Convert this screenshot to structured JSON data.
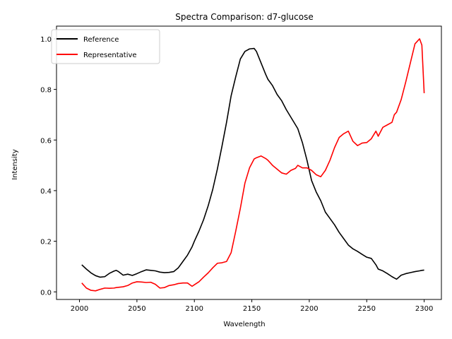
{
  "chart_data": {
    "type": "line",
    "title": "Spectra Comparison: d7-glucose",
    "xlabel": "Wavelength",
    "ylabel": "Intensity",
    "xlim": [
      1980,
      2315
    ],
    "ylim": [
      -0.03,
      1.05
    ],
    "xticks": [
      2000,
      2050,
      2100,
      2150,
      2200,
      2250,
      2300
    ],
    "yticks": [
      0.0,
      0.2,
      0.4,
      0.6,
      0.8,
      1.0
    ],
    "grid": false,
    "legend_position": "top-left",
    "x": [
      2002,
      2006,
      2010,
      2014,
      2018,
      2022,
      2026,
      2030,
      2032,
      2034,
      2038,
      2042,
      2046,
      2050,
      2054,
      2058,
      2062,
      2066,
      2070,
      2074,
      2078,
      2082,
      2086,
      2090,
      2094,
      2098,
      2100,
      2104,
      2108,
      2112,
      2116,
      2120,
      2124,
      2128,
      2132,
      2136,
      2140,
      2144,
      2148,
      2152,
      2154,
      2158,
      2162,
      2164,
      2168,
      2172,
      2176,
      2180,
      2184,
      2188,
      2190,
      2194,
      2198,
      2202,
      2206,
      2210,
      2214,
      2218,
      2222,
      2226,
      2230,
      2234,
      2238,
      2242,
      2246,
      2250,
      2254,
      2258,
      2260,
      2264,
      2268,
      2272,
      2274,
      2276,
      2280,
      2284,
      2288,
      2292,
      2296,
      2298,
      2300
    ],
    "series": [
      {
        "name": "Reference",
        "color": "#000000",
        "values": [
          0.107,
          0.09,
          0.075,
          0.064,
          0.058,
          0.06,
          0.073,
          0.082,
          0.085,
          0.08,
          0.066,
          0.07,
          0.065,
          0.072,
          0.08,
          0.087,
          0.085,
          0.083,
          0.078,
          0.076,
          0.077,
          0.08,
          0.095,
          0.12,
          0.145,
          0.178,
          0.2,
          0.24,
          0.285,
          0.34,
          0.405,
          0.485,
          0.575,
          0.67,
          0.775,
          0.85,
          0.92,
          0.95,
          0.96,
          0.962,
          0.95,
          0.905,
          0.86,
          0.84,
          0.815,
          0.78,
          0.755,
          0.72,
          0.69,
          0.66,
          0.645,
          0.59,
          0.52,
          0.44,
          0.395,
          0.36,
          0.315,
          0.29,
          0.265,
          0.235,
          0.21,
          0.185,
          0.17,
          0.16,
          0.148,
          0.137,
          0.132,
          0.107,
          0.09,
          0.083,
          0.072,
          0.06,
          0.055,
          0.05,
          0.066,
          0.072,
          0.076,
          0.08,
          0.083,
          0.085,
          0.086
        ]
      },
      {
        "name": "Representative",
        "color": "#ff0000",
        "values": [
          0.035,
          0.015,
          0.006,
          0.004,
          0.01,
          0.015,
          0.014,
          0.015,
          0.017,
          0.018,
          0.02,
          0.025,
          0.035,
          0.04,
          0.039,
          0.037,
          0.038,
          0.03,
          0.015,
          0.017,
          0.025,
          0.028,
          0.033,
          0.035,
          0.035,
          0.022,
          0.028,
          0.04,
          0.058,
          0.075,
          0.095,
          0.113,
          0.115,
          0.12,
          0.155,
          0.24,
          0.33,
          0.43,
          0.49,
          0.525,
          0.53,
          0.537,
          0.527,
          0.52,
          0.5,
          0.485,
          0.47,
          0.465,
          0.48,
          0.488,
          0.5,
          0.49,
          0.49,
          0.48,
          0.463,
          0.455,
          0.48,
          0.52,
          0.57,
          0.61,
          0.625,
          0.635,
          0.595,
          0.578,
          0.588,
          0.59,
          0.605,
          0.635,
          0.615,
          0.65,
          0.66,
          0.67,
          0.7,
          0.71,
          0.76,
          0.83,
          0.905,
          0.98,
          1.0,
          0.975,
          0.785
        ]
      }
    ]
  }
}
